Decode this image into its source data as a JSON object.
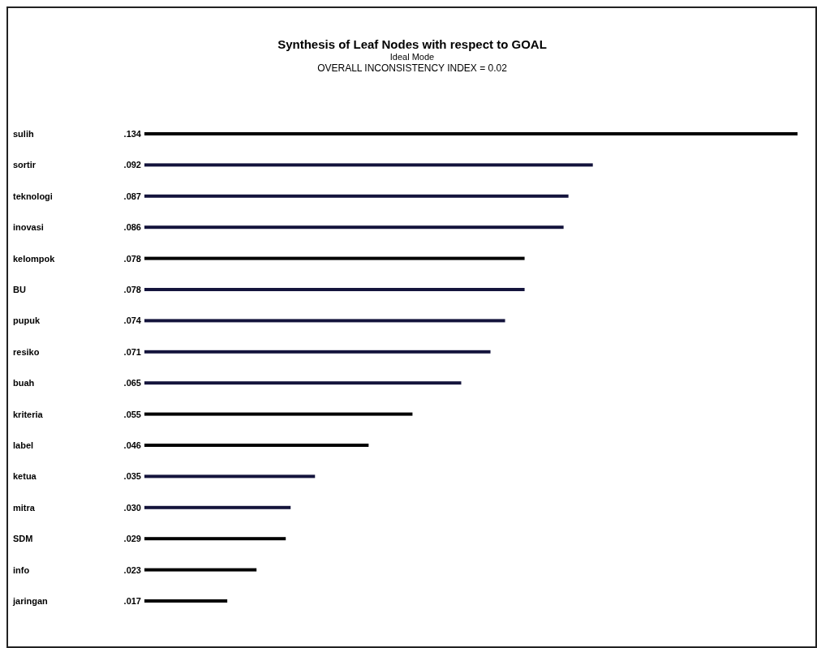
{
  "chart_data": {
    "type": "bar",
    "orientation": "horizontal",
    "title": "Synthesis of Leaf Nodes with respect to GOAL",
    "subtitle": "Ideal Mode",
    "annotations": [
      "OVERALL INCONSISTENCY INDEX = 0.02"
    ],
    "categories": [
      "sulih",
      "sortir",
      "teknologi",
      "inovasi",
      "kelompok",
      "BU",
      "pupuk",
      "resiko",
      "buah",
      "kriteria",
      "label",
      "ketua",
      "mitra",
      "SDM",
      "info",
      "jaringan"
    ],
    "values": [
      0.134,
      0.092,
      0.087,
      0.086,
      0.078,
      0.078,
      0.074,
      0.071,
      0.065,
      0.055,
      0.046,
      0.035,
      0.03,
      0.029,
      0.023,
      0.017
    ],
    "value_labels": [
      ".134",
      ".092",
      ".087",
      ".086",
      ".078",
      ".078",
      ".074",
      ".071",
      ".065",
      ".055",
      ".046",
      ".035",
      ".030",
      ".029",
      ".023",
      ".017"
    ],
    "colors": [
      "#000000",
      "#14143c",
      "#14143c",
      "#14143c",
      "#000000",
      "#14143c",
      "#14143c",
      "#14143c",
      "#14143c",
      "#000000",
      "#000000",
      "#14143c",
      "#14143c",
      "#000000",
      "#000000",
      "#000000"
    ]
  }
}
